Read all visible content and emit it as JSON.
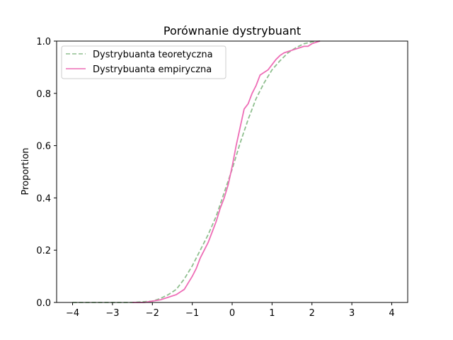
{
  "chart_data": {
    "type": "line",
    "title": "Porównanie dystrybuant",
    "xlabel": "",
    "ylabel": "Proportion",
    "xlim": [
      -4.4,
      4.4
    ],
    "ylim": [
      0,
      1
    ],
    "xticks": [
      -4,
      -3,
      -2,
      -1,
      0,
      1,
      2,
      3,
      4
    ],
    "yticks": [
      0.0,
      0.2,
      0.4,
      0.6,
      0.8,
      1.0
    ],
    "xtick_labels": [
      "−4",
      "−3",
      "−2",
      "−1",
      "0",
      "1",
      "2",
      "3",
      "4"
    ],
    "ytick_labels": [
      "0.0",
      "0.2",
      "0.4",
      "0.6",
      "0.8",
      "1.0"
    ],
    "grid": false,
    "legend_position": "top-left",
    "series": [
      {
        "name": "Dystrybuanta teoretyczna",
        "color": "#8fbf8f",
        "style": "dashed",
        "x": [
          -4,
          -3.5,
          -3,
          -2.5,
          -2,
          -1.8,
          -1.6,
          -1.4,
          -1.2,
          -1.0,
          -0.8,
          -0.6,
          -0.4,
          -0.2,
          0,
          0.2,
          0.4,
          0.6,
          0.8,
          1.0,
          1.2,
          1.4,
          1.6,
          1.8,
          2.0,
          2.2
        ],
        "y": [
          0.0,
          0.0,
          0.0,
          0.0,
          0.005,
          0.015,
          0.03,
          0.05,
          0.09,
          0.14,
          0.2,
          0.26,
          0.33,
          0.42,
          0.51,
          0.61,
          0.7,
          0.78,
          0.84,
          0.89,
          0.925,
          0.955,
          0.975,
          0.99,
          0.997,
          1.0
        ]
      },
      {
        "name": "Dystrybuanta empiryczna",
        "color": "#ee6db6",
        "style": "solid",
        "x": [
          -2.5,
          -2.2,
          -2.0,
          -1.8,
          -1.6,
          -1.4,
          -1.2,
          -1.1,
          -1.0,
          -0.9,
          -0.8,
          -0.7,
          -0.6,
          -0.5,
          -0.4,
          -0.3,
          -0.2,
          -0.1,
          0,
          0.1,
          0.2,
          0.3,
          0.4,
          0.5,
          0.6,
          0.7,
          0.8,
          0.9,
          1.0,
          1.1,
          1.2,
          1.3,
          1.4,
          1.5,
          1.6,
          1.7,
          1.8,
          1.9,
          2.0,
          2.2
        ],
        "y": [
          0.0,
          0.0,
          0.005,
          0.01,
          0.02,
          0.03,
          0.05,
          0.075,
          0.1,
          0.13,
          0.17,
          0.2,
          0.23,
          0.27,
          0.31,
          0.36,
          0.4,
          0.45,
          0.52,
          0.6,
          0.67,
          0.74,
          0.76,
          0.8,
          0.83,
          0.87,
          0.88,
          0.89,
          0.91,
          0.93,
          0.945,
          0.955,
          0.96,
          0.965,
          0.97,
          0.975,
          0.98,
          0.98,
          0.99,
          1.0
        ]
      }
    ]
  }
}
